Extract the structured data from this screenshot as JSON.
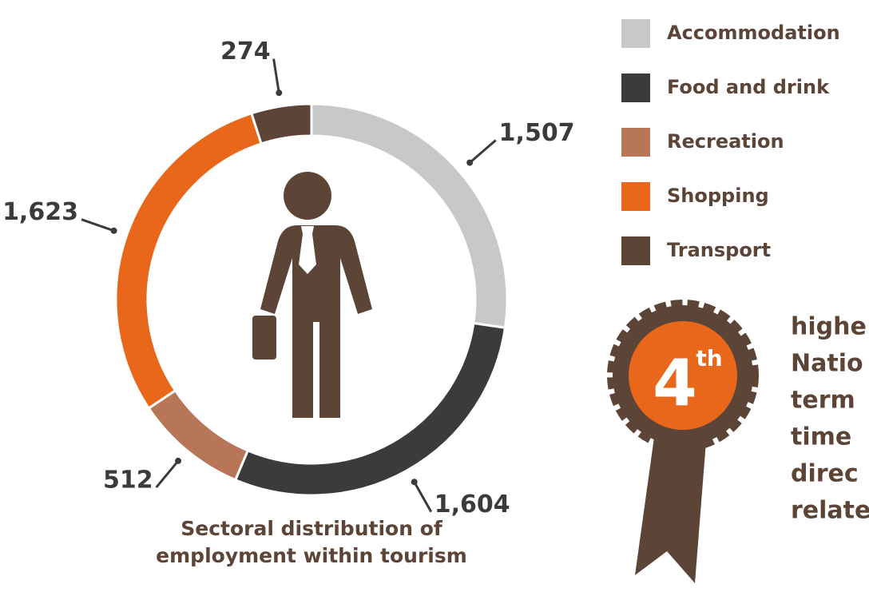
{
  "chart_data": {
    "type": "pie",
    "donut": true,
    "title": "Sectoral distribution of employment within tourism",
    "categories": [
      "Accommodation",
      "Food and drink",
      "Recreation",
      "Shopping",
      "Transport"
    ],
    "values": [
      1507,
      1604,
      512,
      1623,
      274
    ],
    "value_labels": [
      "1,507",
      "1,604",
      "512",
      "1,623",
      "274"
    ],
    "colors": [
      "#c8c8c8",
      "#3c3b39",
      "#b67657",
      "#e8671a",
      "#5c4437"
    ],
    "badge": {
      "rank": "4",
      "suffix": "th",
      "lines": [
        "highe",
        "Natio",
        "term",
        "time",
        "direc",
        "relate"
      ]
    }
  }
}
